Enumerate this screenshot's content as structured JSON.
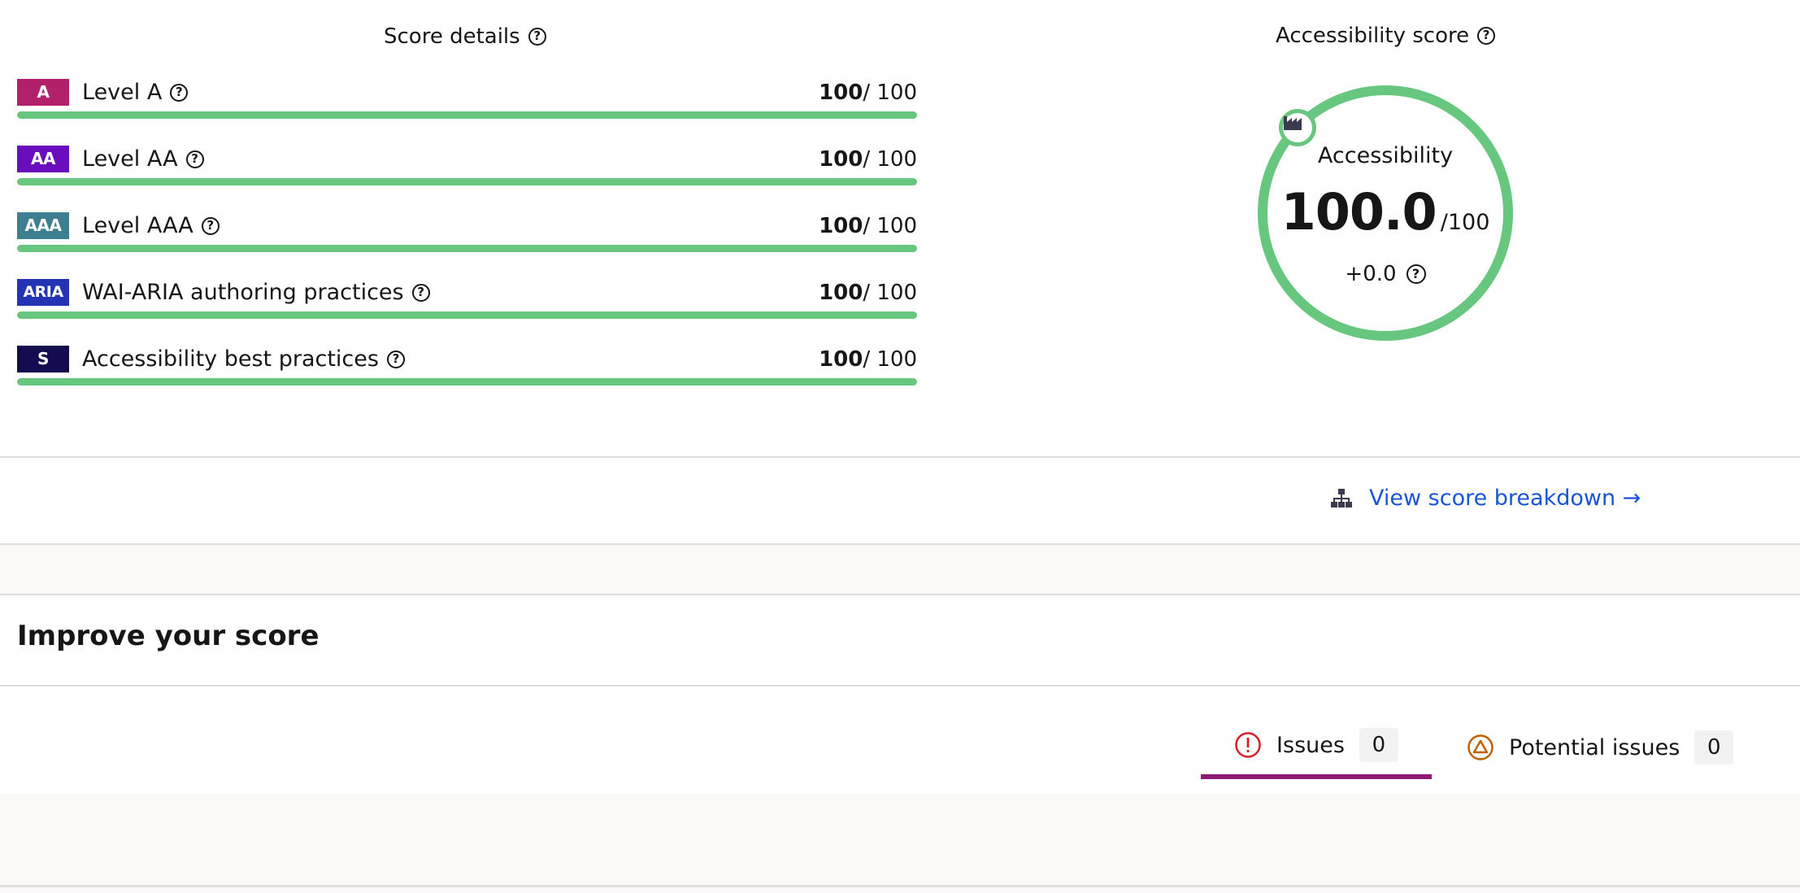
{
  "score_details": {
    "title": "Score details",
    "rows": [
      {
        "badge": "A",
        "badge_color": "#b21f6b",
        "label": "Level A",
        "score": "100",
        "max": "/ 100",
        "fill": 1.0
      },
      {
        "badge": "AA",
        "badge_color": "#6a0dbf",
        "label": "Level AA",
        "score": "100",
        "max": "/ 100",
        "fill": 1.0
      },
      {
        "badge": "AAA",
        "badge_color": "#3d7f90",
        "label": "Level AAA",
        "score": "100",
        "max": "/ 100",
        "fill": 1.0
      },
      {
        "badge": "ARIA",
        "badge_color": "#2333b4",
        "label": "WAI-ARIA authoring practices",
        "score": "100",
        "max": "/ 100",
        "fill": 1.0
      },
      {
        "badge": "S",
        "badge_color": "#130d4f",
        "label": "Accessibility best practices",
        "score": "100",
        "max": "/ 100",
        "fill": 1.0
      }
    ],
    "bar_color": "#67c77f"
  },
  "accessibility_score": {
    "title": "Accessibility score",
    "gauge_label": "Accessibility",
    "value": "100.0",
    "max": "/100",
    "delta": "+0.0",
    "fill": 1.0
  },
  "breakdown": {
    "link_label": "View score breakdown →"
  },
  "improve": {
    "title": "Improve your score",
    "tabs": [
      {
        "label": "Issues",
        "count": "0",
        "icon": "error-icon"
      },
      {
        "label": "Potential issues",
        "count": "0",
        "icon": "warning-triangle-icon"
      }
    ]
  }
}
